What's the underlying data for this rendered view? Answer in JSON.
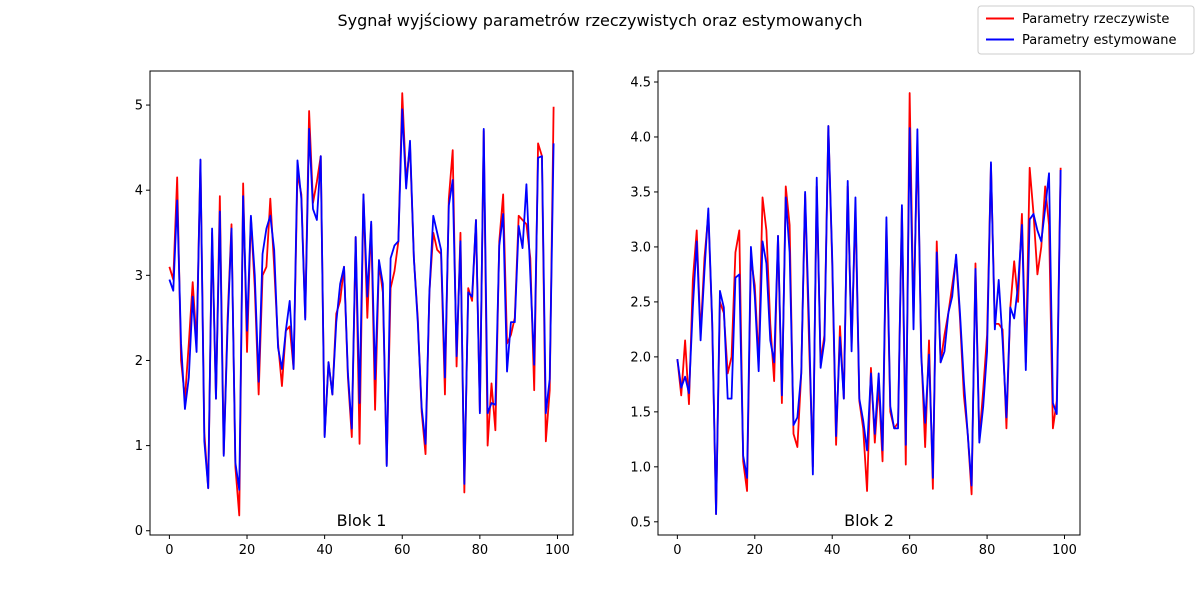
{
  "figure": {
    "title": "Sygnał wyjściowy parametrów rzeczywistych oraz estymowanych"
  },
  "legend": {
    "placement": "top-right",
    "entries": [
      {
        "label": "Parametry rzeczywiste",
        "color": "#ff0000"
      },
      {
        "label": "Parametry estymowane",
        "color": "#0000ff"
      }
    ]
  },
  "chart_data": [
    {
      "type": "line",
      "label": "Blok 1",
      "xlim": [
        -5,
        104
      ],
      "ylim": [
        -0.05,
        5.4
      ],
      "xticks": [
        0,
        20,
        40,
        60,
        80,
        100
      ],
      "yticks": [
        0,
        1,
        2,
        3,
        4,
        5
      ],
      "grid": false,
      "series": [
        {
          "name": "Parametry rzeczywiste",
          "color": "#ff0000",
          "values": [
            3.1,
            2.95,
            4.15,
            2.0,
            1.55,
            2.2,
            2.92,
            2.2,
            4.35,
            1.15,
            0.5,
            3.5,
            1.55,
            3.93,
            0.9,
            2.5,
            3.6,
            0.75,
            0.18,
            4.08,
            2.1,
            3.68,
            2.85,
            1.6,
            3.0,
            3.1,
            3.9,
            3.1,
            2.2,
            1.7,
            2.35,
            2.4,
            1.9,
            4.2,
            3.95,
            2.5,
            4.93,
            3.85,
            4.1,
            4.4,
            1.12,
            1.98,
            1.6,
            2.55,
            2.7,
            3.1,
            1.8,
            1.1,
            3.45,
            1.02,
            3.95,
            2.5,
            3.6,
            1.42,
            3.15,
            2.8,
            0.78,
            2.85,
            3.05,
            3.4,
            5.14,
            4.1,
            4.52,
            3.2,
            2.5,
            1.4,
            0.9,
            2.8,
            3.5,
            3.3,
            3.25,
            1.6,
            3.9,
            4.47,
            1.93,
            3.5,
            0.45,
            2.85,
            2.7,
            3.65,
            1.4,
            4.7,
            1.0,
            1.73,
            1.18,
            3.4,
            3.95,
            2.2,
            2.3,
            2.5,
            3.7,
            3.65,
            3.6,
            3.2,
            1.65,
            4.55,
            4.4,
            1.05,
            1.65,
            4.98
          ]
        },
        {
          "name": "Parametry estymowane",
          "color": "#0000ff",
          "values": [
            2.95,
            2.82,
            3.88,
            2.2,
            1.43,
            1.8,
            2.75,
            2.1,
            4.36,
            1.05,
            0.5,
            3.55,
            1.55,
            3.75,
            0.88,
            2.4,
            3.55,
            0.8,
            0.48,
            3.93,
            2.35,
            3.7,
            3.0,
            1.75,
            3.25,
            3.55,
            3.7,
            3.3,
            2.15,
            1.9,
            2.35,
            2.7,
            1.9,
            4.35,
            3.9,
            2.48,
            4.72,
            3.78,
            3.65,
            4.4,
            1.1,
            1.98,
            1.6,
            2.45,
            2.9,
            3.1,
            1.85,
            1.2,
            3.45,
            1.5,
            3.95,
            2.75,
            3.63,
            1.78,
            3.18,
            2.9,
            0.76,
            3.2,
            3.35,
            3.4,
            4.95,
            4.02,
            4.58,
            3.2,
            2.45,
            1.45,
            1.02,
            2.8,
            3.7,
            3.5,
            3.3,
            1.8,
            3.82,
            4.12,
            2.05,
            3.4,
            0.55,
            2.8,
            2.75,
            3.65,
            1.38,
            4.72,
            1.38,
            1.5,
            1.48,
            3.35,
            3.72,
            1.87,
            2.45,
            2.45,
            3.58,
            3.32,
            4.07,
            3.0,
            1.95,
            4.38,
            4.4,
            1.38,
            1.78,
            4.55
          ]
        }
      ]
    },
    {
      "type": "line",
      "label": "Blok 2",
      "xlim": [
        -5,
        104
      ],
      "ylim": [
        0.38,
        4.6
      ],
      "xticks": [
        0,
        20,
        40,
        60,
        80,
        100
      ],
      "yticks": [
        0.5,
        1.0,
        1.5,
        2.0,
        2.5,
        3.0,
        3.5,
        4.0,
        4.5
      ],
      "grid": false,
      "series": [
        {
          "name": "Parametry rzeczywiste",
          "color": "#ff0000",
          "values": [
            1.98,
            1.65,
            2.15,
            1.57,
            2.7,
            3.15,
            2.2,
            2.9,
            3.3,
            2.3,
            0.57,
            2.5,
            2.4,
            1.85,
            2.0,
            2.95,
            3.15,
            1.05,
            0.78,
            2.9,
            2.65,
            1.95,
            3.45,
            3.15,
            2.3,
            1.78,
            3.1,
            1.58,
            3.55,
            3.2,
            1.3,
            1.18,
            1.85,
            3.48,
            2.15,
            1.0,
            3.55,
            1.95,
            2.2,
            4.1,
            2.85,
            1.2,
            2.28,
            1.62,
            3.55,
            2.1,
            3.35,
            1.6,
            1.35,
            0.78,
            1.9,
            1.22,
            1.75,
            1.05,
            3.2,
            1.5,
            1.35,
            1.4,
            3.35,
            1.02,
            4.4,
            2.35,
            3.95,
            2.05,
            1.18,
            2.15,
            0.8,
            3.05,
            1.95,
            2.2,
            2.4,
            2.65,
            2.9,
            2.35,
            1.65,
            1.3,
            0.75,
            2.85,
            1.25,
            1.7,
            2.2,
            3.75,
            2.3,
            2.3,
            2.25,
            1.35,
            2.45,
            2.87,
            2.5,
            3.3,
            1.95,
            3.72,
            3.3,
            2.75,
            3.0,
            3.55,
            3.2,
            1.35,
            1.6,
            3.72
          ]
        },
        {
          "name": "Parametry estymowane",
          "color": "#0000ff",
          "values": [
            1.98,
            1.72,
            1.82,
            1.67,
            2.45,
            3.05,
            2.15,
            2.78,
            3.35,
            2.32,
            0.57,
            2.6,
            2.45,
            1.62,
            1.62,
            2.72,
            2.75,
            1.1,
            0.9,
            3.0,
            2.55,
            1.87,
            3.05,
            2.85,
            2.15,
            1.95,
            3.1,
            1.65,
            3.45,
            2.95,
            1.38,
            1.45,
            1.85,
            3.5,
            2.32,
            0.93,
            3.63,
            1.9,
            2.15,
            4.1,
            2.9,
            1.28,
            2.18,
            1.62,
            3.6,
            2.05,
            3.45,
            1.62,
            1.42,
            1.15,
            1.85,
            1.3,
            1.85,
            1.15,
            3.27,
            1.55,
            1.35,
            1.35,
            3.38,
            1.2,
            4.08,
            2.25,
            4.07,
            2.0,
            1.4,
            2.02,
            0.9,
            2.95,
            1.95,
            2.05,
            2.4,
            2.55,
            2.93,
            2.4,
            1.78,
            1.3,
            0.83,
            2.8,
            1.22,
            1.55,
            2.05,
            3.77,
            2.25,
            2.7,
            2.15,
            1.45,
            2.45,
            2.35,
            2.65,
            3.2,
            1.88,
            3.25,
            3.3,
            3.15,
            3.05,
            3.35,
            3.67,
            1.58,
            1.48,
            3.7
          ]
        }
      ]
    }
  ]
}
